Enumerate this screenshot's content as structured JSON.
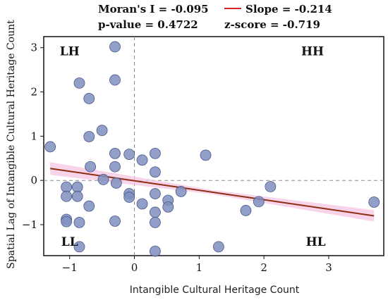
{
  "stats": {
    "morans_i": "Moran's I = -0.095",
    "p_value": "p-value = 0.4722",
    "slope": "Slope = -0.214",
    "z_score": "z-score = -0.719"
  },
  "colors": {
    "point_fill": "#7f8fc0",
    "point_stroke": "#4a5687",
    "trend_line": "#8b2e12",
    "trend_band": "#f4c6e3",
    "legend_line": "#d62728",
    "ref_line": "#888888"
  },
  "chart_data": {
    "type": "scatter",
    "title": "",
    "xlabel": "Intangible Cultural Heritage Count",
    "ylabel": "Spatial Lag of Intangible Cultural Heritage Count",
    "xlim": [
      -1.4,
      3.85
    ],
    "ylim": [
      -1.7,
      3.25
    ],
    "xticks": [
      -1,
      0,
      1,
      2,
      3
    ],
    "yticks": [
      -1,
      0,
      1,
      2,
      3
    ],
    "xtick_labels": [
      "−1",
      "0",
      "1",
      "2",
      "3"
    ],
    "ytick_labels": [
      "−1",
      "0",
      "1",
      "2",
      "3"
    ],
    "grid": false,
    "reference_lines": {
      "x": 0,
      "y": 0
    },
    "quadrant_labels": [
      {
        "text": "LH",
        "x": -1.0,
        "y": 2.83
      },
      {
        "text": "HH",
        "x": 2.75,
        "y": 2.83
      },
      {
        "text": "LL",
        "x": -1.0,
        "y": -1.48
      },
      {
        "text": "HL",
        "x": 2.8,
        "y": -1.48
      }
    ],
    "trend": {
      "slope": -0.214,
      "x": [
        -1.3,
        3.7
      ],
      "y": [
        0.27,
        -0.8
      ]
    },
    "points": [
      {
        "x": -1.3,
        "y": 0.76
      },
      {
        "x": -0.3,
        "y": 3.02
      },
      {
        "x": -0.3,
        "y": 2.27
      },
      {
        "x": -0.85,
        "y": 2.2
      },
      {
        "x": -0.7,
        "y": 1.85
      },
      {
        "x": -0.5,
        "y": 1.13
      },
      {
        "x": -0.7,
        "y": 0.99
      },
      {
        "x": -0.3,
        "y": 0.61
      },
      {
        "x": -0.08,
        "y": 0.59
      },
      {
        "x": 0.32,
        "y": 0.61
      },
      {
        "x": 0.12,
        "y": 0.46
      },
      {
        "x": 1.1,
        "y": 0.57
      },
      {
        "x": -0.3,
        "y": 0.31
      },
      {
        "x": -0.68,
        "y": 0.31
      },
      {
        "x": 0.32,
        "y": 0.19
      },
      {
        "x": -0.48,
        "y": 0.02
      },
      {
        "x": -0.28,
        "y": -0.06
      },
      {
        "x": -1.05,
        "y": -0.15
      },
      {
        "x": -0.88,
        "y": -0.15
      },
      {
        "x": -1.05,
        "y": -0.36
      },
      {
        "x": -0.88,
        "y": -0.36
      },
      {
        "x": -0.08,
        "y": -0.3
      },
      {
        "x": -0.08,
        "y": -0.38
      },
      {
        "x": 0.72,
        "y": -0.25
      },
      {
        "x": 0.32,
        "y": -0.3
      },
      {
        "x": 0.52,
        "y": -0.45
      },
      {
        "x": 0.12,
        "y": -0.53
      },
      {
        "x": 0.52,
        "y": -0.6
      },
      {
        "x": -0.7,
        "y": -0.58
      },
      {
        "x": 2.1,
        "y": -0.14
      },
      {
        "x": 1.92,
        "y": -0.48
      },
      {
        "x": 1.72,
        "y": -0.68
      },
      {
        "x": 3.7,
        "y": -0.49
      },
      {
        "x": 0.32,
        "y": -0.72
      },
      {
        "x": -1.05,
        "y": -0.88
      },
      {
        "x": -1.05,
        "y": -0.93
      },
      {
        "x": -0.85,
        "y": -0.95
      },
      {
        "x": -0.3,
        "y": -0.92
      },
      {
        "x": 0.32,
        "y": -0.95
      },
      {
        "x": -0.85,
        "y": -1.5
      },
      {
        "x": 1.3,
        "y": -1.5
      },
      {
        "x": 0.32,
        "y": -1.6
      }
    ]
  }
}
